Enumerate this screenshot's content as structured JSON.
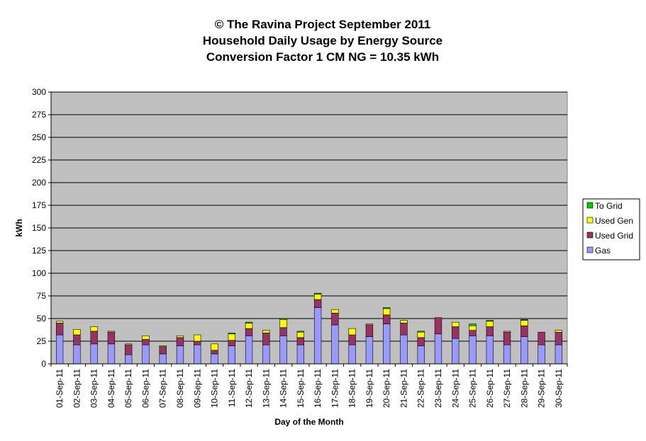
{
  "chart_data": {
    "type": "bar",
    "stacked": true,
    "title_lines": [
      "© The Ravina Project September 2011",
      "Household Daily Usage by Energy Source",
      "Conversion Factor 1 CM NG = 10.35 kWh"
    ],
    "xlabel": "Day of the Month",
    "ylabel": "kWh",
    "ylim": [
      0,
      300
    ],
    "yticks": [
      0,
      25,
      50,
      75,
      100,
      125,
      150,
      175,
      200,
      225,
      250,
      275,
      300
    ],
    "grid": true,
    "legend_position": "right",
    "plot_background": "#C0C0C0",
    "categories": [
      "01-Sep-11",
      "02-Sep-11",
      "03-Sep-11",
      "04-Sep-11",
      "05-Sep-11",
      "06-Sep-11",
      "07-Sep-11",
      "08-Sep-11",
      "09-Sep-11",
      "10-Sep-11",
      "11-Sep-11",
      "12-Sep-11",
      "13-Sep-11",
      "14-Sep-11",
      "15-Sep-11",
      "16-Sep-11",
      "17-Sep-11",
      "18-Sep-11",
      "19-Sep-11",
      "20-Sep-11",
      "21-Sep-11",
      "22-Sep-11",
      "23-Sep-11",
      "24-Sep-11",
      "25-Sep-11",
      "26-Sep-11",
      "27-Sep-11",
      "28-Sep-11",
      "29-Sep-11",
      "30-Sep-11"
    ],
    "series": [
      {
        "name": "Gas",
        "color": "#9999FF",
        "values": [
          32,
          21,
          22,
          22,
          10,
          21,
          11,
          20,
          21,
          11,
          20,
          31,
          21,
          31,
          21,
          62,
          43,
          21,
          30,
          44,
          32,
          20,
          33,
          28,
          31,
          31,
          21,
          30,
          21,
          21
        ]
      },
      {
        "name": "Used Grid",
        "color": "#993366",
        "values": [
          13,
          11,
          14,
          13,
          11,
          6,
          8,
          9,
          4,
          4,
          6,
          8,
          13,
          9,
          8,
          9,
          13,
          11,
          13,
          10,
          13,
          9,
          18,
          13,
          6,
          10,
          14,
          12,
          14,
          14
        ]
      },
      {
        "name": "Used Gen",
        "color": "#FFFF00",
        "values": [
          2,
          6,
          5,
          1,
          1,
          4,
          1,
          2,
          7,
          7,
          7,
          6,
          3,
          9,
          6,
          6,
          4,
          7,
          1,
          7,
          3,
          6,
          0,
          5,
          5,
          6,
          1,
          6,
          0,
          2
        ]
      },
      {
        "name": "To Grid",
        "color": "#00CC00",
        "values": [
          0,
          0,
          0,
          0,
          0,
          0,
          0,
          0,
          0,
          0,
          1,
          1,
          0,
          1,
          1,
          1,
          0,
          0,
          0,
          1,
          0,
          1,
          0,
          0,
          2,
          1,
          0,
          1,
          0,
          0
        ]
      }
    ],
    "legend_order": [
      "To Grid",
      "Used Gen",
      "Used Grid",
      "Gas"
    ]
  }
}
